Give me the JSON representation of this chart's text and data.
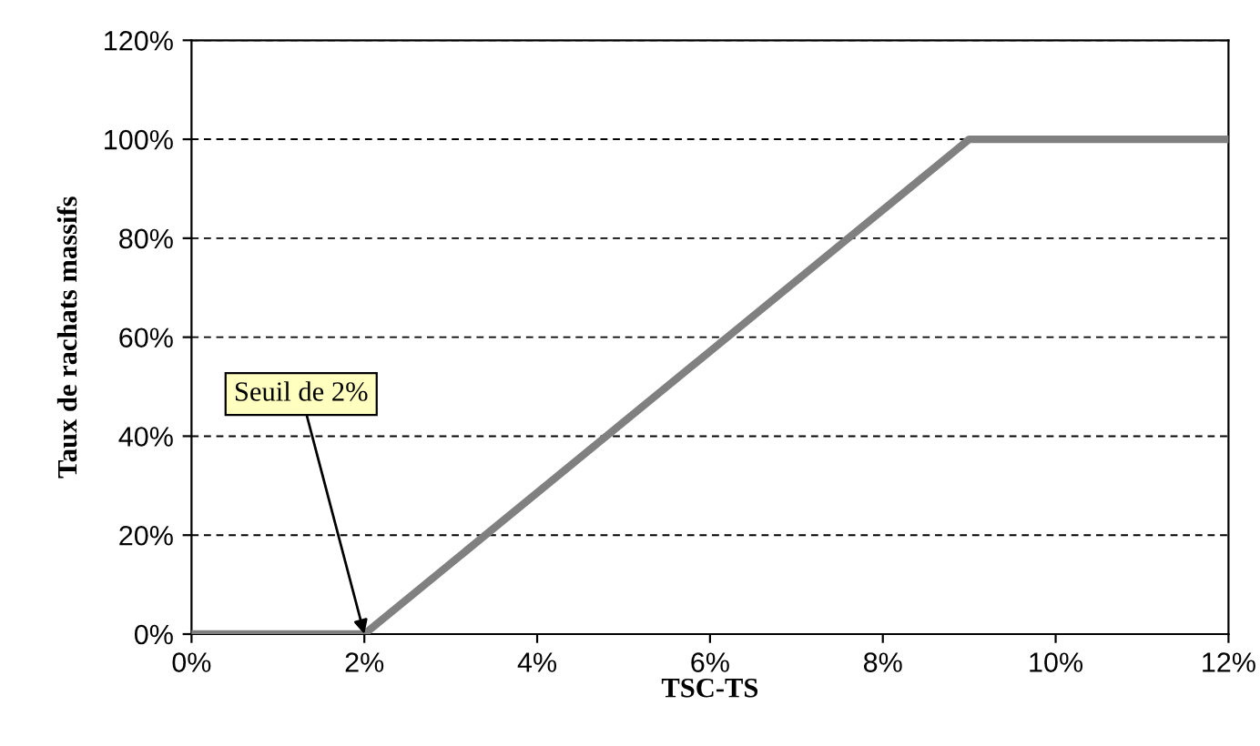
{
  "chart_data": {
    "type": "line",
    "xlabel": "TSC-TS",
    "ylabel": "Taux de rachats massifs",
    "series": [
      {
        "color": "#808080",
        "x": [
          0,
          2,
          9,
          12
        ],
        "values": [
          0,
          0,
          100,
          100
        ]
      }
    ],
    "xlim": [
      0,
      12
    ],
    "ylim": [
      0,
      120
    ],
    "xticks": [
      {
        "value": 0,
        "label": "0%"
      },
      {
        "value": 2,
        "label": "2%"
      },
      {
        "value": 4,
        "label": "4%"
      },
      {
        "value": 6,
        "label": "6%"
      },
      {
        "value": 8,
        "label": "8%"
      },
      {
        "value": 10,
        "label": "10%"
      },
      {
        "value": 12,
        "label": "12%"
      }
    ],
    "yticks": [
      {
        "value": 0,
        "label": "0%"
      },
      {
        "value": 20,
        "label": "20%"
      },
      {
        "value": 40,
        "label": "40%"
      },
      {
        "value": 60,
        "label": "60%"
      },
      {
        "value": 80,
        "label": "80%"
      },
      {
        "value": 100,
        "label": "100%"
      },
      {
        "value": 120,
        "label": "120%"
      }
    ],
    "grid": "y",
    "marker": "none",
    "line_style": "solid",
    "annotations": [
      {
        "text": "Seuil de 2%",
        "x": 2,
        "y": 0
      }
    ]
  }
}
